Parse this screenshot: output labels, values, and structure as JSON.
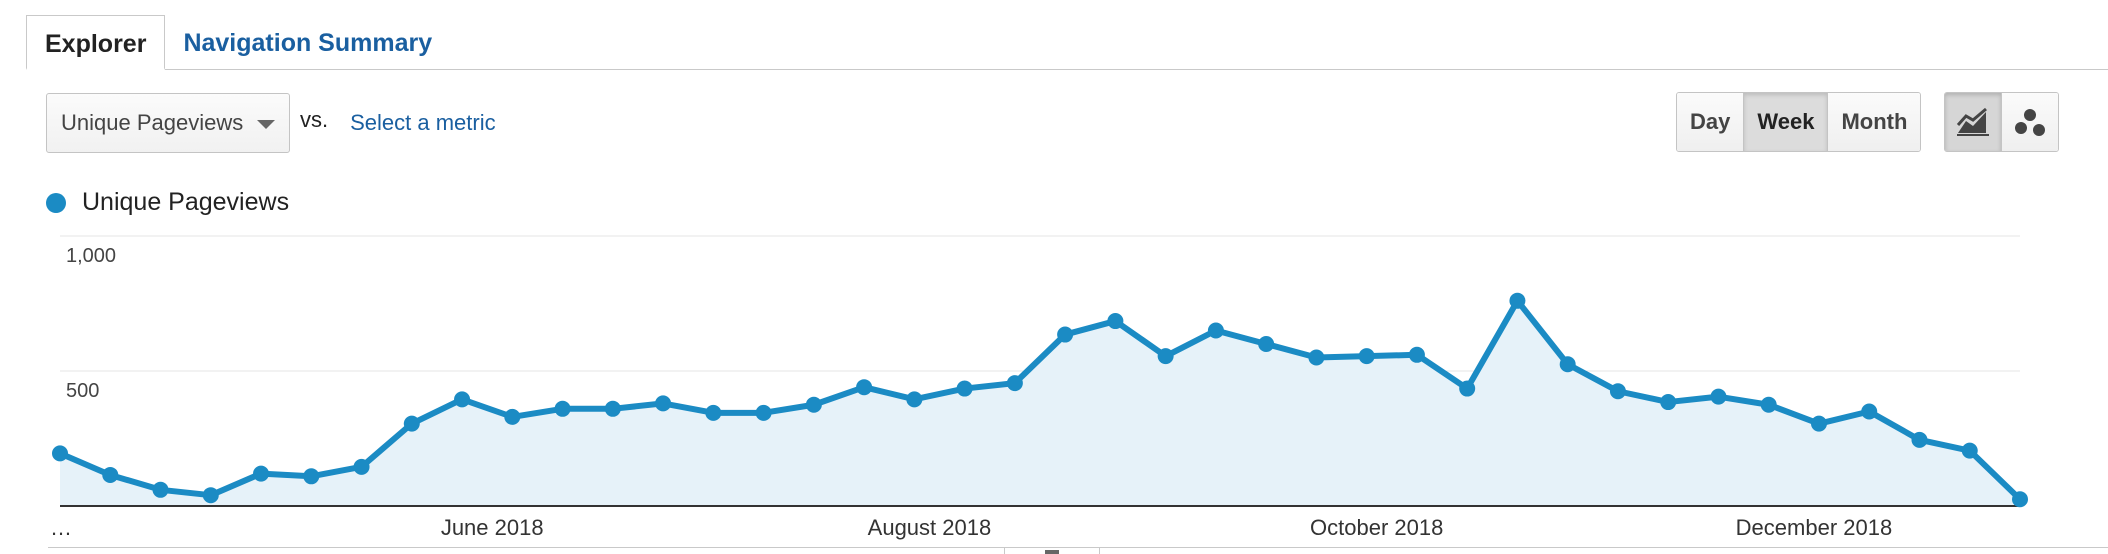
{
  "tabs": [
    {
      "label": "Explorer",
      "active": true
    },
    {
      "label": "Navigation Summary",
      "active": false
    }
  ],
  "metric_selector": {
    "value": "Unique Pageviews",
    "vs_label": "vs.",
    "compare_link": "Select a metric"
  },
  "granularity": {
    "options": [
      "Day",
      "Week",
      "Month"
    ],
    "selected": "Week"
  },
  "chart_type": {
    "options": [
      "line-chart-icon",
      "motion-chart-icon"
    ],
    "selected": "line-chart-icon"
  },
  "legend": {
    "label": "Unique Pageviews",
    "color": "#1b8bc4"
  },
  "chart_data": {
    "type": "area",
    "title": "",
    "xlabel": "",
    "ylabel": "",
    "ylim": [
      0,
      1000
    ],
    "yticks": [
      {
        "value": 1000,
        "label": "1,000"
      },
      {
        "value": 500,
        "label": "500"
      }
    ],
    "xticks": [
      {
        "index": 0,
        "label": "…"
      },
      {
        "index": 8.6,
        "label": "June 2018"
      },
      {
        "index": 17.3,
        "label": "August 2018"
      },
      {
        "index": 26.2,
        "label": "October 2018"
      },
      {
        "index": 34.9,
        "label": "December 2018"
      }
    ],
    "grid": true,
    "series": [
      {
        "name": "Unique Pageviews",
        "color": "#1b8bc4",
        "fill": "#e6f2f9",
        "values": [
          195,
          115,
          60,
          40,
          120,
          110,
          145,
          305,
          395,
          330,
          360,
          360,
          380,
          345,
          345,
          375,
          440,
          395,
          435,
          455,
          635,
          685,
          555,
          650,
          600,
          550,
          555,
          560,
          435,
          760,
          525,
          425,
          385,
          405,
          375,
          305,
          350,
          245,
          205,
          25
        ]
      }
    ]
  }
}
